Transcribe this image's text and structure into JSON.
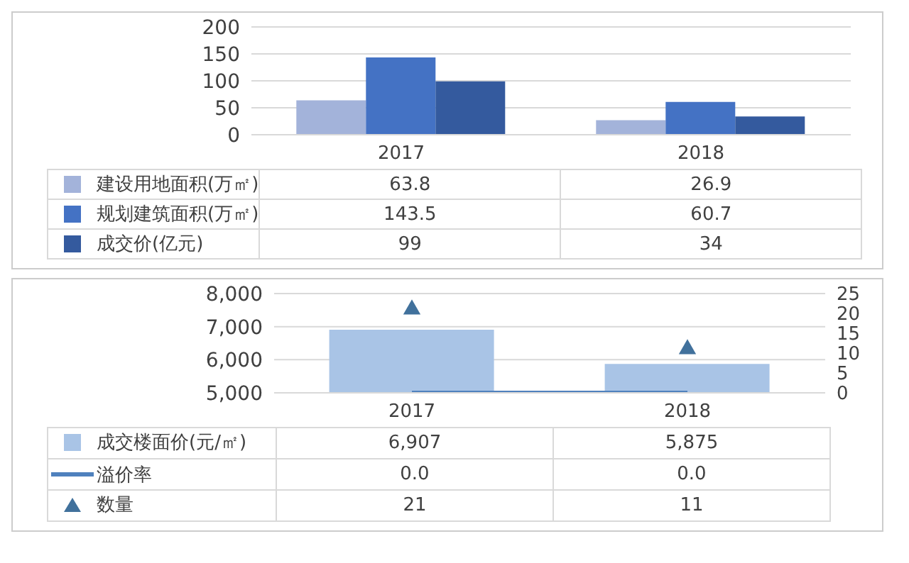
{
  "chart_data": [
    {
      "type": "bar",
      "categories": [
        "2017",
        "2018"
      ],
      "ylim": [
        0,
        200
      ],
      "yticks": [
        0,
        50,
        100,
        150,
        200
      ],
      "grid": "y",
      "legend": "bottom",
      "series": [
        {
          "name": "建设用地面积(万㎡)",
          "color": "#a3b3da",
          "values": [
            63.8,
            26.9
          ],
          "value_labels": [
            "63.8",
            "26.9"
          ]
        },
        {
          "name": "规划建筑面积(万㎡)",
          "color": "#4472c4",
          "values": [
            143.5,
            60.7
          ],
          "value_labels": [
            "143.5",
            "60.7"
          ]
        },
        {
          "name": "成交价(亿元)",
          "color": "#345a9e",
          "values": [
            99,
            34
          ],
          "value_labels": [
            "99",
            "34"
          ]
        }
      ]
    },
    {
      "type": "bar",
      "categories": [
        "2017",
        "2018"
      ],
      "ylim": [
        5000,
        8000
      ],
      "yticks": [
        {
          "value": 5000,
          "label": "5,000"
        },
        {
          "value": 6000,
          "label": "6,000"
        },
        {
          "value": 7000,
          "label": "7,000"
        },
        {
          "value": 8000,
          "label": "8,000"
        }
      ],
      "y2lim": [
        0,
        25
      ],
      "y2ticks": [
        0,
        5,
        10,
        15,
        20,
        25
      ],
      "grid": "y",
      "legend": "bottom",
      "series": [
        {
          "name": "成交楼面价(元/㎡)",
          "type": "bar",
          "color": "#a9c4e6",
          "values": [
            6907,
            5875
          ],
          "value_labels": [
            "6,907",
            "5,875"
          ]
        },
        {
          "name": "溢价率",
          "type": "line",
          "axis": "y2",
          "color": "#4f81bd",
          "marker": "none",
          "values": [
            0,
            0
          ],
          "value_labels": [
            "0.0",
            "0.0"
          ]
        },
        {
          "name": "数量",
          "type": "scatter",
          "axis": "y2",
          "color": "#41719c",
          "marker": "triangle",
          "values": [
            21,
            11
          ],
          "value_labels": [
            "21",
            "11"
          ]
        }
      ]
    }
  ]
}
